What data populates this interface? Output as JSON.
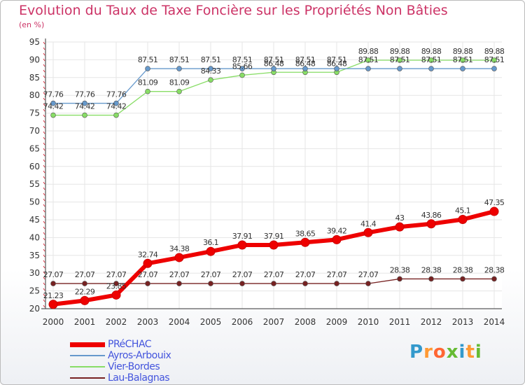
{
  "title": "Evolution du Taux de Taxe Foncière sur les Propriétés Non Bâties",
  "subtitle": "(en %)",
  "logo": {
    "letters": [
      "P",
      "r",
      "o",
      "x",
      "i",
      "t",
      "i"
    ],
    "colors": [
      "#3399cc",
      "#ff9933",
      "#ff6633",
      "#66bb33",
      "#3399cc",
      "#ff9933",
      "#66bb33"
    ]
  },
  "chart_data": {
    "type": "line",
    "title": "Evolution du Taux de Taxe Foncière sur les Propriétés Non Bâties",
    "ylabel": "(en %)",
    "xlabel": "",
    "ylim": [
      20,
      95
    ],
    "yticks": [
      "20",
      "25",
      "30",
      "35",
      "40",
      "45",
      "50",
      "55",
      "60",
      "65",
      "70",
      "75",
      "80",
      "85",
      "90",
      "95"
    ],
    "categories": [
      "2000",
      "2001",
      "2002",
      "2003",
      "2004",
      "2005",
      "2006",
      "2007",
      "2008",
      "2009",
      "2010",
      "2011",
      "2012",
      "2013",
      "2014"
    ],
    "grid": true,
    "series": [
      {
        "name": "Lau-Balagnas",
        "color": "#772222",
        "values": [
          27.07,
          27.07,
          27.07,
          27.07,
          27.07,
          27.07,
          27.07,
          27.07,
          27.07,
          27.07,
          27.07,
          28.38,
          28.38,
          28.38,
          28.38
        ],
        "labels": [
          "27.07",
          "27.07",
          "27.07",
          "27.07",
          "27.07",
          "27.07",
          "27.07",
          "27.07",
          "27.07",
          "27.07",
          "27.07",
          "28.38",
          "28.38",
          "28.38",
          "28.38"
        ]
      },
      {
        "name": "Vier-Bordes",
        "color": "#88dd66",
        "values": [
          74.42,
          74.42,
          74.42,
          81.09,
          81.09,
          84.33,
          85.66,
          86.48,
          86.48,
          86.48,
          89.88,
          89.88,
          89.88,
          89.88,
          89.88
        ],
        "labels": [
          "74.42",
          "74.42",
          "74.42",
          "81.09",
          "81.09",
          "84.33",
          "85.66",
          "86.48",
          "86.48",
          "86.48",
          "89.88",
          "89.88",
          "89.88",
          "89.88",
          "89.88"
        ]
      },
      {
        "name": "Ayros-Arbouix",
        "color": "#6699cc",
        "values": [
          77.76,
          77.76,
          77.76,
          87.51,
          87.51,
          87.51,
          87.51,
          87.51,
          87.51,
          87.51,
          87.51,
          87.51,
          87.51,
          87.51,
          87.51
        ],
        "labels": [
          "77.76",
          "77.76",
          "77.76",
          "87.51",
          "87.51",
          "87.51",
          "87.51",
          "87.51",
          "87.51",
          "87.51",
          "87.51",
          "87.51",
          "87.51",
          "87.51",
          "87.51"
        ]
      },
      {
        "name": "PRéCHAC",
        "color": "#ee0000",
        "values": [
          21.23,
          22.29,
          23.85,
          32.74,
          34.38,
          36.1,
          37.91,
          37.91,
          38.65,
          39.42,
          41.4,
          43,
          43.86,
          45.1,
          47.35
        ],
        "labels": [
          "21.23",
          "22.29",
          "23.85",
          "32.74",
          "34.38",
          "36.1",
          "37.91",
          "37.91",
          "38.65",
          "39.42",
          "41.4",
          "43",
          "43.86",
          "45.1",
          "47.35"
        ]
      }
    ],
    "legend": [
      "PRéCHAC",
      "Ayros-Arbouix",
      "Vier-Bordes",
      "Lau-Balagnas"
    ]
  }
}
